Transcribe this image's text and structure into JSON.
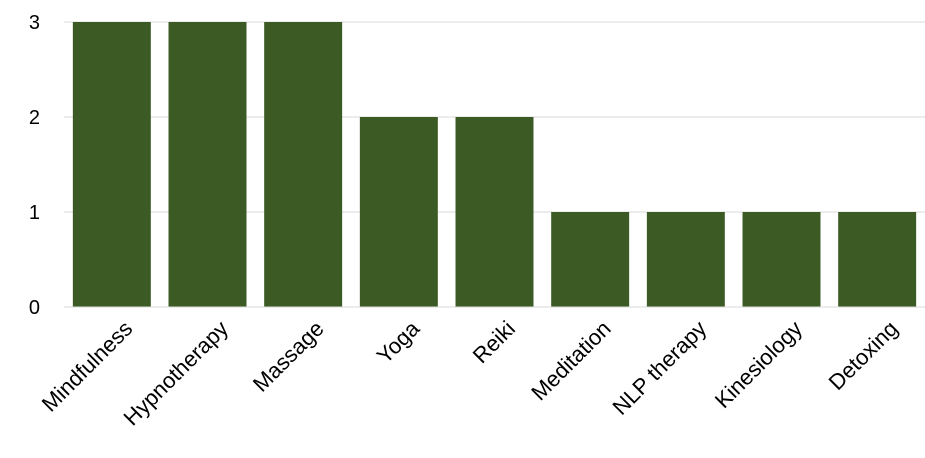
{
  "chart_data": {
    "type": "bar",
    "categories": [
      "Mindfulness",
      "Hypnotherapy",
      "Massage",
      "Yoga",
      "Reiki",
      "Meditation",
      "NLP therapy",
      "Kinesiology",
      "Detoxing"
    ],
    "values": [
      3,
      3,
      3,
      2,
      2,
      1,
      1,
      1,
      1
    ],
    "yticks": [
      0,
      1,
      2,
      3
    ],
    "ylim": [
      0,
      3
    ],
    "title": "",
    "xlabel": "",
    "ylabel": "",
    "grid": true,
    "legend": "none",
    "bar_color": "#3b5a24",
    "gridline_color": "#d9d9d9"
  }
}
